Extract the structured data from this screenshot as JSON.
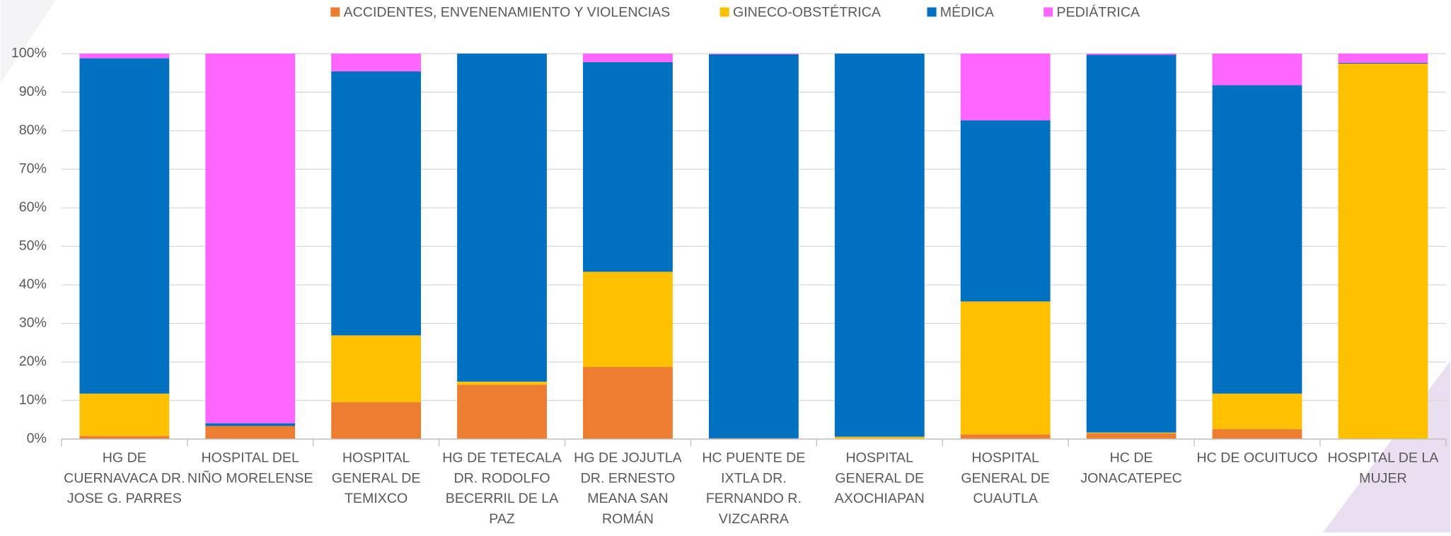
{
  "chart_data": {
    "type": "stacked_bar",
    "categories": [
      "HG DE CUERNAVACA DR. JOSE G. PARRES",
      "HOSPITAL DEL NIÑO MORELENSE",
      "HOSPITAL GENERAL DE TEMIXCO",
      "HG DE TETECALA DR. RODOLFO BECERRIL DE LA PAZ",
      "HG DE JOJUTLA DR. ERNESTO MEANA SAN ROMÁN",
      "HC PUENTE DE IXTLA DR. FERNANDO R. VIZCARRA",
      "HOSPITAL GENERAL DE AXOCHIAPAN",
      "HOSPITAL GENERAL DE CUAUTLA",
      "HC DE JONACATEPEC",
      "HC DE OCUITUCO",
      "HOSPITAL DE LA MUJER"
    ],
    "series": [
      {
        "name": "ACCIDENTES, ENVENENAMIENTO Y VIOLENCIAS",
        "color": "#ED7D31",
        "values": [
          0.8,
          3.4,
          9.6,
          14.1,
          18.7,
          0.2,
          0,
          1.2,
          1.5,
          2.6,
          0
        ]
      },
      {
        "name": "GINECO-OBSTÉTRICA",
        "color": "#FFC000",
        "values": [
          11,
          0,
          17.3,
          0.8,
          24.7,
          0,
          0.6,
          34.5,
          0.2,
          9.2,
          97.4
        ]
      },
      {
        "name": "MÉDICA",
        "color": "#0070C0",
        "values": [
          87,
          0.7,
          68.5,
          85.1,
          54.4,
          99.6,
          99.4,
          47,
          98,
          80,
          0.2
        ]
      },
      {
        "name": "PEDIÁTRICA",
        "color": "#FF66FF",
        "values": [
          1.2,
          95.9,
          4.6,
          0,
          2.2,
          0.2,
          0,
          17.3,
          0.3,
          8.2,
          2.4
        ]
      }
    ],
    "ylim": [
      0,
      100
    ],
    "yticks": [
      {
        "value": 0,
        "label": "0%"
      },
      {
        "value": 10,
        "label": "10%"
      },
      {
        "value": 20,
        "label": "20%"
      },
      {
        "value": 30,
        "label": "30%"
      },
      {
        "value": 40,
        "label": "40%"
      },
      {
        "value": 50,
        "label": "50%"
      },
      {
        "value": 60,
        "label": "60%"
      },
      {
        "value": 70,
        "label": "70%"
      },
      {
        "value": 80,
        "label": "80%"
      },
      {
        "value": 90,
        "label": "90%"
      },
      {
        "value": 100,
        "label": "100%"
      }
    ],
    "grid": true,
    "legend": "top"
  }
}
